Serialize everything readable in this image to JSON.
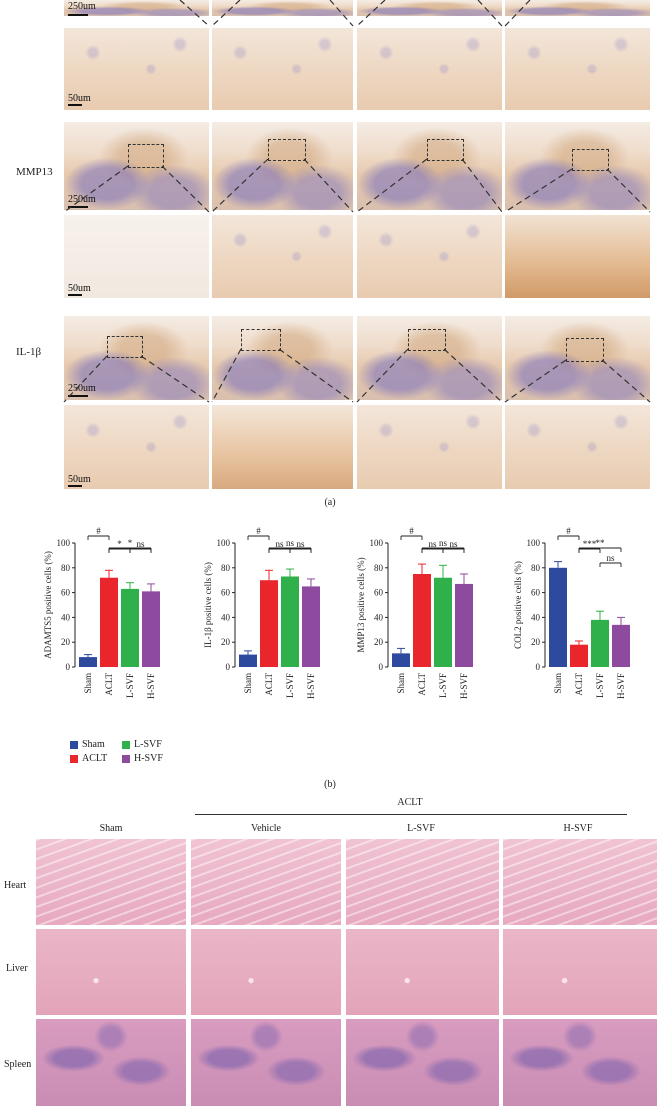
{
  "panel_a": {
    "rows": [
      {
        "label": "",
        "low_scale": "250um",
        "high_scale": "50um"
      },
      {
        "label": "MMP13",
        "low_scale": "250um",
        "high_scale": "50um"
      },
      {
        "label": "IL-1β",
        "low_scale": "250um",
        "high_scale": "50um"
      }
    ],
    "caption": "(a)"
  },
  "panel_b_caption": "(b)",
  "chart_data": [
    {
      "type": "bar",
      "categories": [
        "Sham",
        "ACLT",
        "L-SVF",
        "H-SVF"
      ],
      "values": [
        8,
        72,
        63,
        61
      ],
      "errors": [
        2,
        6,
        5,
        6
      ],
      "ylabel": "ADAMTS5 positive cells (%)",
      "ylim": [
        0,
        100
      ],
      "yticks": [
        "0",
        "20",
        "40",
        "60",
        "80",
        "100"
      ],
      "sig": [
        {
          "label": "#",
          "from": 0,
          "to": 1,
          "level": 0
        },
        {
          "label": "*",
          "from": 1,
          "to": 3,
          "level": 0
        },
        {
          "label": "*",
          "from": 1,
          "to": 2,
          "level": 1
        },
        {
          "label": "ns",
          "from": 2,
          "to": 3,
          "level": 1
        }
      ]
    },
    {
      "type": "bar",
      "categories": [
        "Sham",
        "ACLT",
        "L-SVF",
        "H-SVF"
      ],
      "values": [
        10,
        70,
        73,
        65
      ],
      "errors": [
        3,
        8,
        6,
        6
      ],
      "ylabel": "IL-1β positive cells (%)",
      "ylim": [
        0,
        100
      ],
      "yticks": [
        "0",
        "20",
        "40",
        "60",
        "80",
        "100"
      ],
      "sig": [
        {
          "label": "#",
          "from": 0,
          "to": 1,
          "level": 0
        },
        {
          "label": "ns",
          "from": 1,
          "to": 3,
          "level": 0
        },
        {
          "label": "ns",
          "from": 1,
          "to": 2,
          "level": 1
        },
        {
          "label": "ns",
          "from": 2,
          "to": 3,
          "level": 1
        }
      ]
    },
    {
      "type": "bar",
      "categories": [
        "Sham",
        "ACLT",
        "L-SVF",
        "H-SVF"
      ],
      "values": [
        11,
        75,
        72,
        67
      ],
      "errors": [
        4,
        8,
        10,
        8
      ],
      "ylabel": "MMP13 positive cells (%)",
      "ylim": [
        0,
        100
      ],
      "yticks": [
        "0",
        "20",
        "40",
        "60",
        "80",
        "100"
      ],
      "sig": [
        {
          "label": "#",
          "from": 0,
          "to": 1,
          "level": 0
        },
        {
          "label": "ns",
          "from": 1,
          "to": 3,
          "level": 0
        },
        {
          "label": "ns",
          "from": 1,
          "to": 2,
          "level": 1
        },
        {
          "label": "ns",
          "from": 2,
          "to": 3,
          "level": 1
        }
      ]
    },
    {
      "type": "bar",
      "categories": [
        "Sham",
        "ACLT",
        "L-SVF",
        "H-SVF"
      ],
      "values": [
        80,
        18,
        38,
        34
      ],
      "errors": [
        5,
        3,
        7,
        6
      ],
      "ylabel": "COL2 positive cells (%)",
      "ylim": [
        0,
        100
      ],
      "yticks": [
        "0",
        "20",
        "40",
        "60",
        "80",
        "100"
      ],
      "sig": [
        {
          "label": "#",
          "from": 0,
          "to": 1,
          "level": 0
        },
        {
          "label": "**",
          "from": 1,
          "to": 3,
          "level": 0
        },
        {
          "label": "***",
          "from": 1,
          "to": 2,
          "level": 1
        },
        {
          "label": "ns",
          "from": 2,
          "to": 3,
          "level": 2
        }
      ]
    }
  ],
  "legend": [
    {
      "name": "Sham",
      "color": "#2e4a9e"
    },
    {
      "name": "L-SVF",
      "color": "#2fb04a"
    },
    {
      "name": "ACLT",
      "color": "#e8262b"
    },
    {
      "name": "H-SVF",
      "color": "#8e4a9f"
    }
  ],
  "bar_colors": [
    "#2e4a9e",
    "#e8262b",
    "#2fb04a",
    "#8e4a9f"
  ],
  "panel_c": {
    "group_header": "ACLT",
    "columns": [
      "Sham",
      "Vehicle",
      "L-SVF",
      "H-SVF"
    ],
    "rows": [
      "Heart",
      "Liver",
      "Spleen"
    ]
  }
}
